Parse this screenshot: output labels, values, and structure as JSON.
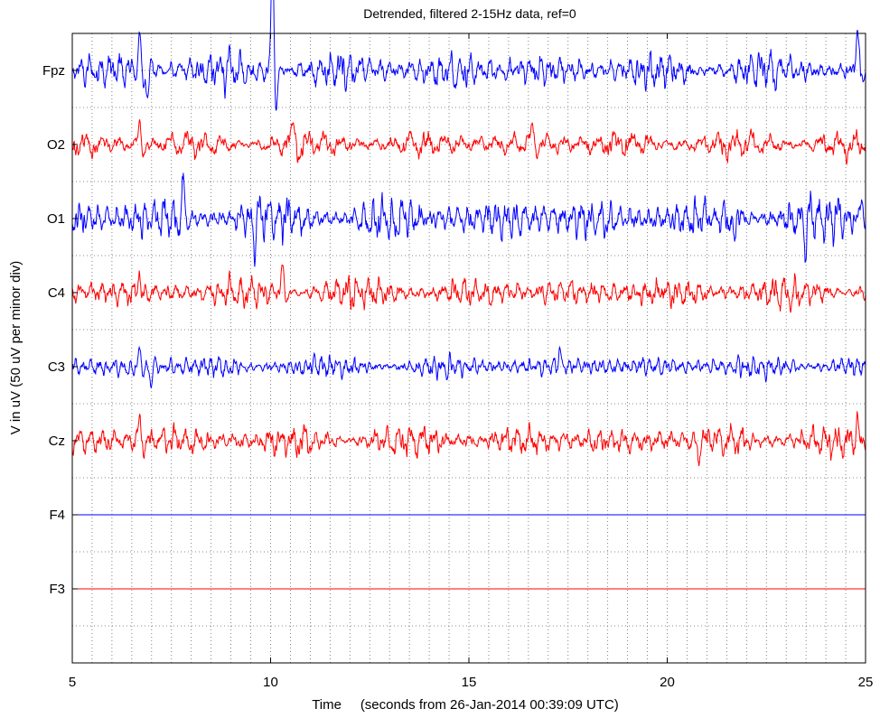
{
  "chart_data": {
    "type": "line",
    "title": "Detrended, filtered 2-15Hz  data,  ref=0",
    "xlabel": "Time     (seconds from 26-Jan-2014 00:39:09 UTC)",
    "ylabel": "V in uV (50 uV per minor div)",
    "xlim": [
      5,
      25
    ],
    "xticks": [
      "5",
      "10",
      "15",
      "20",
      "25"
    ],
    "x_minor_step": 0.5,
    "minor_div_uV": 50,
    "channel_spacing_uV": 100,
    "grid": true,
    "channels": [
      {
        "name": "Fpz",
        "color": "#0000ff",
        "flat": false,
        "amplitude_uV": 22,
        "events": [
          [
            10.05,
            170
          ],
          [
            6.7,
            45
          ],
          [
            24.8,
            60
          ],
          [
            6.9,
            -35
          ]
        ]
      },
      {
        "name": "O2",
        "color": "#ff0000",
        "flat": false,
        "amplitude_uV": 16,
        "events": [
          [
            6.7,
            30
          ],
          [
            10.6,
            35
          ],
          [
            16.6,
            30
          ]
        ]
      },
      {
        "name": "O1",
        "color": "#0000ff",
        "flat": false,
        "amplitude_uV": 26,
        "events": [
          [
            7.8,
            45
          ],
          [
            9.6,
            -40
          ],
          [
            21.7,
            -40
          ],
          [
            23.5,
            -45
          ],
          [
            24.9,
            35
          ]
        ]
      },
      {
        "name": "C4",
        "color": "#ff0000",
        "flat": false,
        "amplitude_uV": 18,
        "events": [
          [
            6.7,
            30
          ],
          [
            10.3,
            35
          ]
        ]
      },
      {
        "name": "C3",
        "color": "#0000ff",
        "flat": false,
        "amplitude_uV": 14,
        "events": [
          [
            6.7,
            25
          ],
          [
            7.0,
            -25
          ],
          [
            17.3,
            25
          ]
        ]
      },
      {
        "name": "Cz",
        "color": "#ff0000",
        "flat": false,
        "amplitude_uV": 18,
        "events": [
          [
            6.7,
            30
          ],
          [
            24.8,
            35
          ],
          [
            20.8,
            -30
          ]
        ]
      },
      {
        "name": "F4",
        "color": "#0000ff",
        "flat": true
      },
      {
        "name": "F3",
        "color": "#ff0000",
        "flat": true
      }
    ]
  }
}
